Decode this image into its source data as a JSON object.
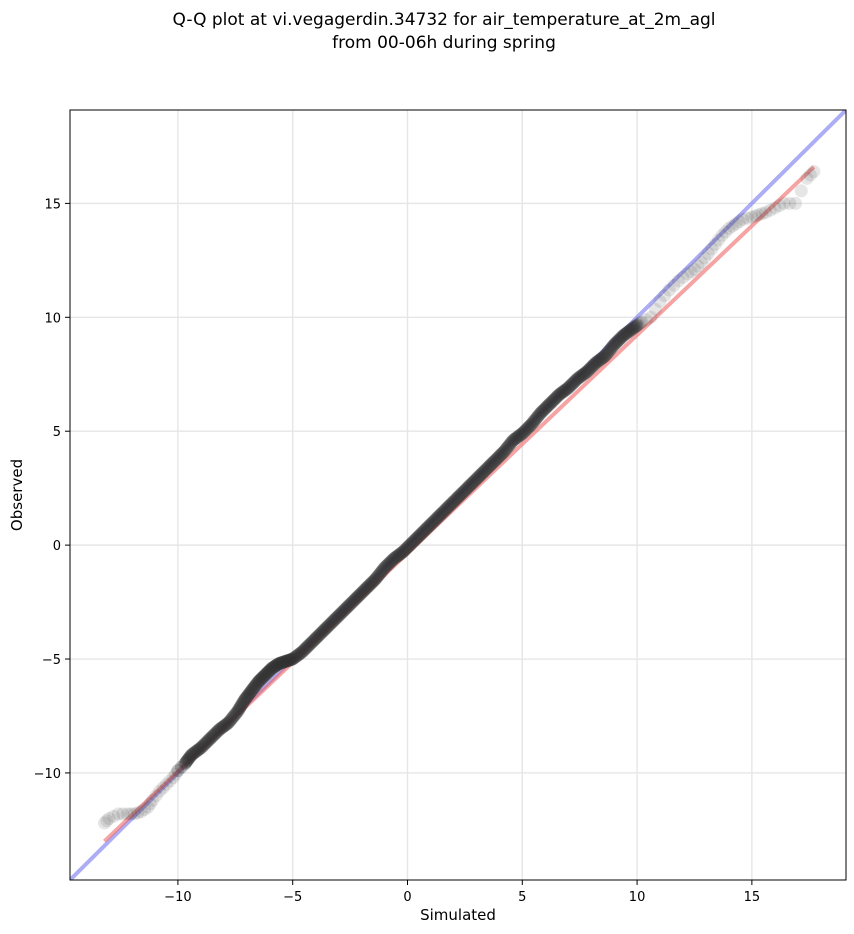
{
  "chart_data": {
    "type": "scatter",
    "title_lines": [
      "Q-Q plot at vi.vegagerdin.34732 for air_temperature_at_2m_agl",
      "from 00-06h during spring"
    ],
    "xlabel": "Simulated",
    "ylabel": "Observed",
    "xlim": [
      -14.7,
      19.1
    ],
    "ylim": [
      -14.7,
      19.1
    ],
    "xticks": [
      -10,
      -5,
      0,
      5,
      10,
      15
    ],
    "yticks": [
      -10,
      -5,
      0,
      5,
      10,
      15
    ],
    "xtick_labels": [
      "−10",
      "−5",
      "0",
      "5",
      "10",
      "15"
    ],
    "ytick_labels": [
      "−10",
      "−5",
      "0",
      "5",
      "10",
      "15"
    ],
    "grid": true,
    "reference_line": {
      "slope": 1,
      "intercept": 0,
      "color": "#7777ee"
    },
    "fit_line": {
      "x": [
        -13.2,
        17.7
      ],
      "y": [
        -13.0,
        16.6
      ],
      "color": "#ee6666"
    },
    "marker_color": "#333333",
    "series": [
      {
        "x": [
          -13.2,
          -13.0,
          -12.6,
          -12.2,
          -11.9,
          -11.6,
          -11.3,
          -11.1,
          -10.8,
          -10.5,
          -10.2,
          -10.0,
          -9.7,
          -9.4,
          -9.0,
          -8.6,
          -8.2,
          -7.8,
          -7.4,
          -7.1,
          -6.8,
          -6.5,
          -6.2,
          -5.9,
          -5.6,
          -5.3,
          -5.0,
          -4.6,
          -4.2,
          -3.8,
          -3.4,
          -3.0,
          -2.6,
          -2.2,
          -1.8,
          -1.4,
          -1.0,
          -0.6,
          -0.2,
          0.2,
          0.6,
          1.0,
          1.4,
          1.8,
          2.2,
          2.6,
          3.0,
          3.4,
          3.8,
          4.2,
          4.6,
          5.0,
          5.4,
          5.8,
          6.2,
          6.6,
          7.0,
          7.4,
          7.8,
          8.2,
          8.6,
          9.0,
          9.4,
          9.8,
          10.2,
          10.6,
          11.0,
          11.4,
          11.8,
          12.2,
          12.5,
          12.8,
          13.1,
          13.4,
          13.7,
          14.0,
          14.3,
          14.6,
          15.0,
          15.3,
          15.6,
          16.0,
          16.4,
          16.9,
          17.4,
          17.7
        ],
        "y": [
          -12.2,
          -12.0,
          -11.8,
          -11.8,
          -11.8,
          -11.7,
          -11.5,
          -11.2,
          -10.8,
          -10.5,
          -10.2,
          -9.9,
          -9.6,
          -9.2,
          -8.9,
          -8.5,
          -8.1,
          -7.8,
          -7.3,
          -6.8,
          -6.4,
          -6.0,
          -5.7,
          -5.4,
          -5.2,
          -5.1,
          -5.0,
          -4.7,
          -4.3,
          -3.9,
          -3.5,
          -3.1,
          -2.7,
          -2.3,
          -1.9,
          -1.5,
          -1.0,
          -0.6,
          -0.3,
          0.1,
          0.5,
          0.9,
          1.3,
          1.7,
          2.1,
          2.5,
          2.9,
          3.3,
          3.7,
          4.1,
          4.6,
          4.9,
          5.3,
          5.8,
          6.2,
          6.6,
          6.9,
          7.3,
          7.6,
          8.0,
          8.3,
          8.8,
          9.2,
          9.5,
          9.8,
          10.0,
          10.7,
          11.2,
          11.6,
          11.9,
          12.1,
          12.4,
          12.8,
          13.2,
          13.6,
          13.9,
          14.1,
          14.3,
          14.4,
          14.5,
          14.6,
          14.8,
          15.0,
          15.0,
          16.1,
          16.4
        ]
      }
    ]
  }
}
